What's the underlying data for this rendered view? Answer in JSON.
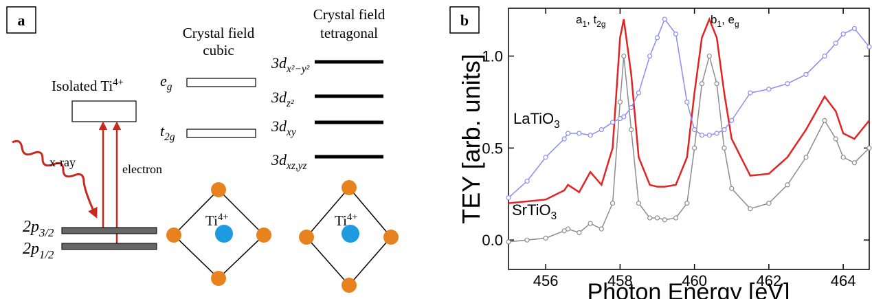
{
  "panel_a": {
    "label": "a",
    "cubic_title": [
      "Crystal field",
      "cubic"
    ],
    "tetragonal_title": [
      "Crystal field",
      "tetragonal"
    ],
    "isolated": {
      "text": "Isolated Ti",
      "sup": "4+"
    },
    "eg": {
      "text": "e",
      "sub": "g"
    },
    "t2g": {
      "text": "t",
      "sub": "2g"
    },
    "levels_tetragonal": [
      {
        "text": "3d",
        "sub": "x²−y²"
      },
      {
        "text": "3d",
        "sub": "z²"
      },
      {
        "text": "3d",
        "sub": "xy"
      },
      {
        "text": "3d",
        "sub": "xz,yz"
      }
    ],
    "xray": "x-ray",
    "electron": "electron",
    "p32": {
      "text": "2p",
      "sub": "3/2"
    },
    "p12": {
      "text": "2p",
      "sub": "1/2"
    },
    "ion": {
      "text": "Ti",
      "sup": "4+"
    }
  },
  "chart_data": {
    "type": "line",
    "panel_label": "b",
    "xlabel": "Photon Energy [eV]",
    "ylabel": "TEY [arb. units]",
    "xlim": [
      455,
      464.7
    ],
    "ylim": [
      -0.16,
      1.26
    ],
    "xticks": [
      456,
      458,
      460,
      462,
      464
    ],
    "yticks": [
      {
        "value": 0,
        "label": "0.0"
      },
      0.5,
      {
        "value": 1,
        "label": "1.0"
      }
    ],
    "x": [
      455,
      455.5,
      456,
      456.5,
      456.6,
      456.9,
      457.2,
      457.5,
      457.8,
      458,
      458.1,
      458.3,
      458.5,
      458.8,
      459,
      459.2,
      459.5,
      459.8,
      460,
      460.2,
      460.4,
      460.6,
      460.8,
      461,
      461.5,
      462,
      462.5,
      463,
      463.5,
      463.8,
      464,
      464.3,
      464.7
    ],
    "series": [
      {
        "color": "#8c8c8c",
        "markers": true,
        "values": [
          -0.01,
          0,
          0.01,
          0.05,
          0.06,
          0.04,
          0.09,
          0.06,
          0.2,
          0.75,
          1.0,
          0.6,
          0.2,
          0.12,
          0.12,
          0.11,
          0.12,
          0.2,
          0.5,
          0.85,
          1.0,
          0.85,
          0.5,
          0.28,
          0.17,
          0.2,
          0.3,
          0.45,
          0.65,
          0.55,
          0.45,
          0.42,
          0.5
        ]
      },
      {
        "color": "#e02424",
        "markers": false,
        "values": [
          0.2,
          0.21,
          0.22,
          0.27,
          0.3,
          0.26,
          0.37,
          0.3,
          0.5,
          1.1,
          1.2,
          0.9,
          0.45,
          0.3,
          0.29,
          0.29,
          0.3,
          0.45,
          0.8,
          1.1,
          1.2,
          1.1,
          0.8,
          0.55,
          0.35,
          0.36,
          0.45,
          0.6,
          0.78,
          0.7,
          0.58,
          0.55,
          0.65
        ]
      },
      {
        "color": "#8a8cf2",
        "markers": true,
        "values": [
          0.23,
          0.32,
          0.45,
          0.55,
          0.58,
          0.58,
          0.57,
          0.6,
          0.64,
          0.66,
          0.67,
          0.72,
          0.8,
          1.0,
          1.1,
          1.2,
          1.12,
          0.75,
          0.6,
          0.57,
          0.57,
          0.58,
          0.6,
          0.65,
          0.8,
          0.82,
          0.85,
          0.9,
          1.0,
          1.07,
          1.12,
          1.15,
          1.05
        ]
      }
    ],
    "annotations": {
      "la": {
        "text": "LaTiO",
        "sub": "3"
      },
      "sr": {
        "text": "SrTiO",
        "sub": "3"
      },
      "a1": {
        "text": "a",
        "sub": "1",
        "text2": ", t",
        "sub2": "2g"
      },
      "b1": {
        "text": "b",
        "sub": "1",
        "text2": ", e",
        "sub2": "g"
      }
    }
  }
}
